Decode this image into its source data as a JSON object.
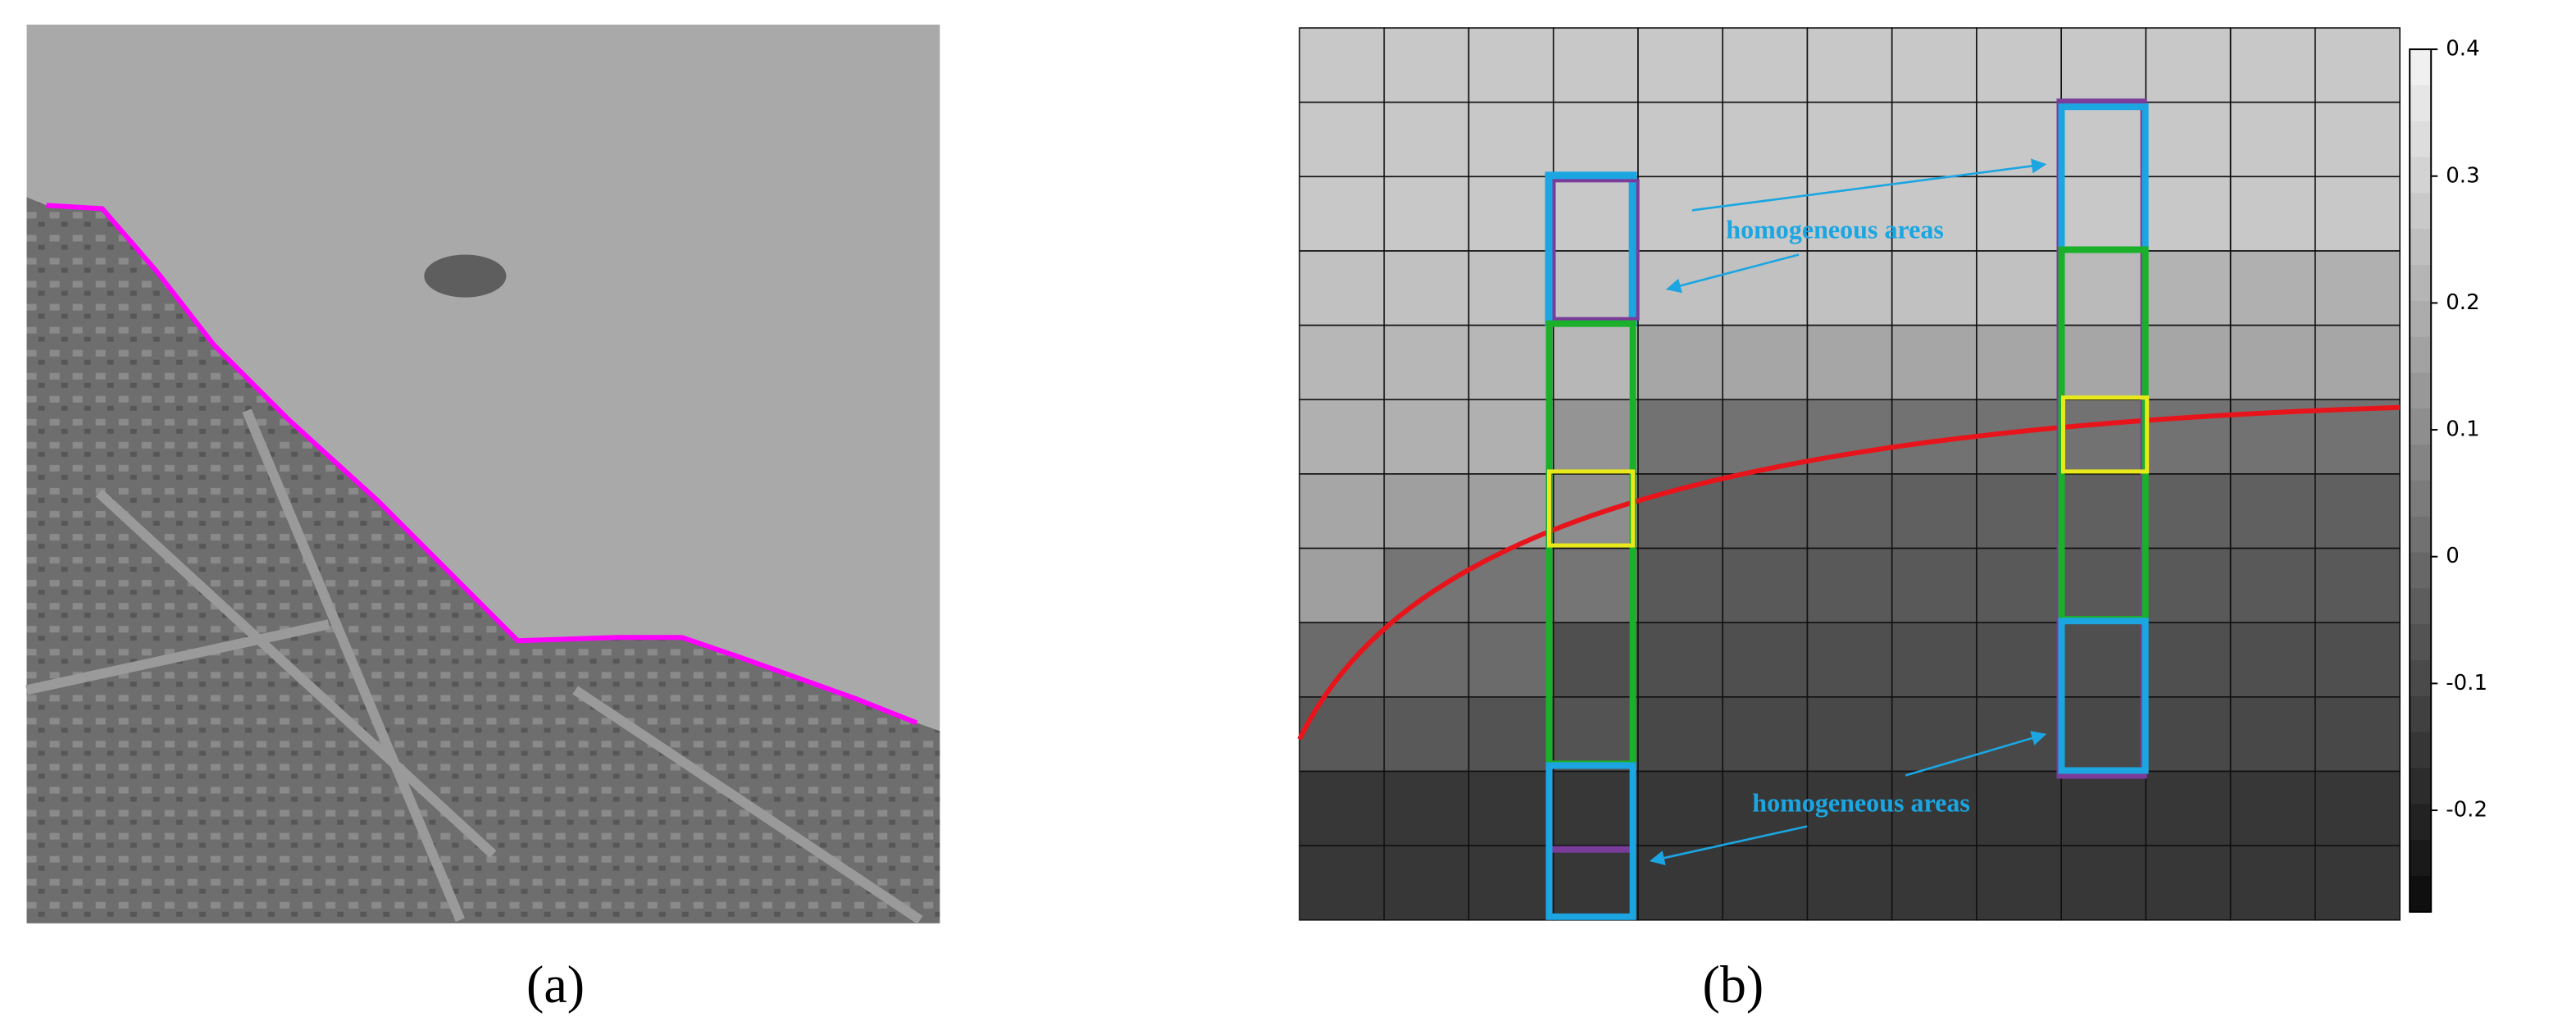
{
  "panel_a": {
    "label": "(a)"
  },
  "panel_b": {
    "label": "(b)",
    "annotations": [
      "homogeneous areas",
      "homogeneous areas"
    ],
    "colorbar": {
      "lim": [
        -0.28,
        0.4
      ],
      "ticks": [
        0.4,
        0.3,
        0.2,
        0.1,
        0,
        -0.1,
        -0.2
      ]
    },
    "cells": [
      [
        0.27,
        0.27,
        0.27,
        0.27,
        0.27,
        0.27,
        0.27,
        0.27,
        0.27,
        0.27,
        0.27,
        0.27,
        0.27
      ],
      [
        0.27,
        0.27,
        0.27,
        0.27,
        0.27,
        0.27,
        0.27,
        0.27,
        0.27,
        0.27,
        0.27,
        0.27,
        0.27
      ],
      [
        0.27,
        0.27,
        0.27,
        0.27,
        0.27,
        0.27,
        0.27,
        0.27,
        0.27,
        0.27,
        0.27,
        0.27,
        0.27
      ],
      [
        0.25,
        0.25,
        0.25,
        0.25,
        0.25,
        0.25,
        0.25,
        0.25,
        0.25,
        0.23,
        0.21,
        0.2,
        0.2
      ],
      [
        0.22,
        0.22,
        0.22,
        0.22,
        0.17,
        0.17,
        0.17,
        0.17,
        0.17,
        0.17,
        0.17,
        0.17,
        0.17
      ],
      [
        0.2,
        0.2,
        0.2,
        0.12,
        0.02,
        0.02,
        0.02,
        0.02,
        0.02,
        0.02,
        0.02,
        0.02,
        0.02
      ],
      [
        0.17,
        0.15,
        0.15,
        0.1,
        -0.03,
        -0.03,
        -0.03,
        -0.03,
        -0.03,
        -0.03,
        -0.03,
        -0.03,
        -0.03
      ],
      [
        0.15,
        0.03,
        0.03,
        0.03,
        -0.05,
        -0.05,
        -0.05,
        -0.05,
        -0.05,
        -0.05,
        -0.05,
        -0.05,
        -0.05
      ],
      [
        0.0,
        0.0,
        0.0,
        -0.08,
        -0.08,
        -0.08,
        -0.08,
        -0.08,
        -0.08,
        -0.08,
        -0.08,
        -0.08,
        -0.08
      ],
      [
        -0.05,
        -0.05,
        -0.07,
        -0.07,
        -0.1,
        -0.1,
        -0.1,
        -0.1,
        -0.1,
        -0.1,
        -0.1,
        -0.1,
        -0.1
      ],
      [
        -0.15,
        -0.15,
        -0.15,
        -0.15,
        -0.15,
        -0.15,
        -0.15,
        -0.15,
        -0.15,
        -0.15,
        -0.15,
        -0.15,
        -0.15
      ],
      [
        -0.15,
        -0.15,
        -0.15,
        -0.15,
        -0.15,
        -0.15,
        -0.15,
        -0.15,
        -0.15,
        -0.15,
        -0.15,
        -0.15,
        -0.15
      ]
    ]
  }
}
